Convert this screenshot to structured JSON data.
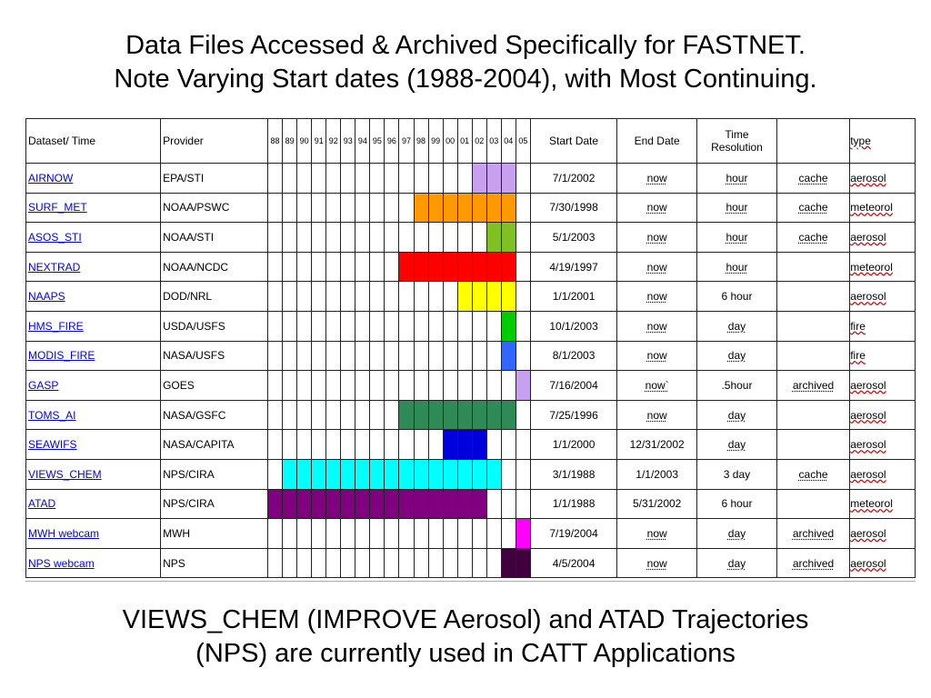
{
  "title": {
    "line1": "Data Files Accessed & Archived Specifically for FASTNET.",
    "line2": "Note Varying Start dates (1988-2004), with Most Continuing."
  },
  "footer": {
    "line1": "VIEWS_CHEM (IMPROVE Aerosol) and ATAD Trajectories",
    "line2": "(NPS) are currently used in CATT Applications"
  },
  "table": {
    "headers": {
      "dataset": "Dataset/ Time",
      "provider": "Provider",
      "years": [
        "88",
        "89",
        "90",
        "91",
        "92",
        "93",
        "94",
        "95",
        "96",
        "97",
        "98",
        "99",
        "00",
        "01",
        "02",
        "03",
        "04",
        "05"
      ],
      "start_date": "Start Date",
      "end_date": "End Date",
      "resolution_line1": "Time",
      "resolution_line2": "Resolution",
      "storage": "",
      "type": "type"
    },
    "rows": [
      {
        "dataset": "AIRNOW",
        "provider": "EPA/STI",
        "start": "7/1/2002",
        "end": "now",
        "resolution": "hour",
        "storage": "cache",
        "type": "aerosol",
        "bar_color": "#c8a0f0",
        "bar_from_year": "02",
        "bar_to_year": "04"
      },
      {
        "dataset": "SURF_MET",
        "provider": "NOAA/PSWC",
        "start": "7/30/1998",
        "end": "now",
        "resolution": "hour",
        "storage": "cache",
        "type": "meteorol",
        "bar_color": "#ff9900",
        "bar_from_year": "98",
        "bar_to_year": "04"
      },
      {
        "dataset": "ASOS_STI",
        "provider": "NOAA/STI",
        "start": "5/1/2003",
        "end": "now",
        "resolution": "hour",
        "storage": "cache",
        "type": "aerosol",
        "bar_color": "#80c020",
        "bar_from_year": "03",
        "bar_to_year": "04"
      },
      {
        "dataset": "NEXTRAD",
        "provider": "NOAA/NCDC",
        "start": "4/19/1997",
        "end": "now",
        "resolution": "hour",
        "storage": "",
        "type": "meteorol",
        "bar_color": "#ff0000",
        "bar_from_year": "97",
        "bar_to_year": "04"
      },
      {
        "dataset": "NAAPS",
        "provider": "DOD/NRL",
        "start": "1/1/2001",
        "end": "now",
        "resolution": "6 hour",
        "storage": "",
        "type": "aerosol",
        "bar_color": "#ffff00",
        "bar_from_year": "01",
        "bar_to_year": "04"
      },
      {
        "dataset": "HMS_FIRE",
        "provider": "USDA/USFS",
        "start": "10/1/2003",
        "end": "now",
        "resolution": "day",
        "storage": "",
        "type": "fire",
        "bar_color": "#00cc00",
        "bar_from_year": "04",
        "bar_to_year": "04"
      },
      {
        "dataset": "MODIS_FIRE",
        "provider": "NASA/USFS",
        "start": "8/1/2003",
        "end": "now",
        "resolution": "day",
        "storage": "",
        "type": "fire",
        "bar_color": "#3366ff",
        "bar_from_year": "04",
        "bar_to_year": "04"
      },
      {
        "dataset": "GASP",
        "provider": "GOES",
        "start": "7/16/2004",
        "end": "now`",
        "resolution": ".5hour",
        "storage": "archived",
        "type": "aerosol",
        "bar_color": "#c8a0f0",
        "bar_from_year": "05",
        "bar_to_year": "05"
      },
      {
        "dataset": "TOMS_AI",
        "provider": "NASA/GSFC",
        "start": "7/25/1996",
        "end": "now",
        "resolution": "day",
        "storage": "",
        "type": "aerosol",
        "bar_color": "#2e8b57",
        "bar_from_year": "97",
        "bar_to_year": "04"
      },
      {
        "dataset": "SEAWIFS",
        "provider": "NASA/CAPITA",
        "start": "1/1/2000",
        "end": "12/31/2002",
        "resolution": "day",
        "storage": "",
        "type": "aerosol",
        "bar_color": "#0000dd",
        "bar_from_year": "00",
        "bar_to_year": "02"
      },
      {
        "dataset": "VIEWS_CHEM",
        "provider": "NPS/CIRA",
        "start": "3/1/1988",
        "end": "1/1/2003",
        "resolution": "3 day",
        "storage": "cache",
        "type": "aerosol",
        "bar_color": "#00ffff",
        "bar_from_year": "89",
        "bar_to_year": "03"
      },
      {
        "dataset": "ATAD",
        "provider": "NPS/CIRA",
        "start": "1/1/1988",
        "end": "5/31/2002",
        "resolution": "6 hour",
        "storage": "",
        "type": "meteorol",
        "bar_color": "#800080",
        "bar_from_year": "88",
        "bar_to_year": "02"
      },
      {
        "dataset": "MWH webcam",
        "provider": "MWH",
        "start": "7/19/2004",
        "end": "now",
        "resolution": "day",
        "storage": "archived",
        "type": "aerosol",
        "bar_color": "#ff00ff",
        "bar_from_year": "05",
        "bar_to_year": "05"
      },
      {
        "dataset": "NPS webcam",
        "provider": "NPS",
        "start": "4/5/2004",
        "end": "now",
        "resolution": "day",
        "storage": "archived",
        "type": "aerosol",
        "bar_color": "#400040",
        "bar_from_year": "04",
        "bar_to_year": "05"
      }
    ]
  }
}
